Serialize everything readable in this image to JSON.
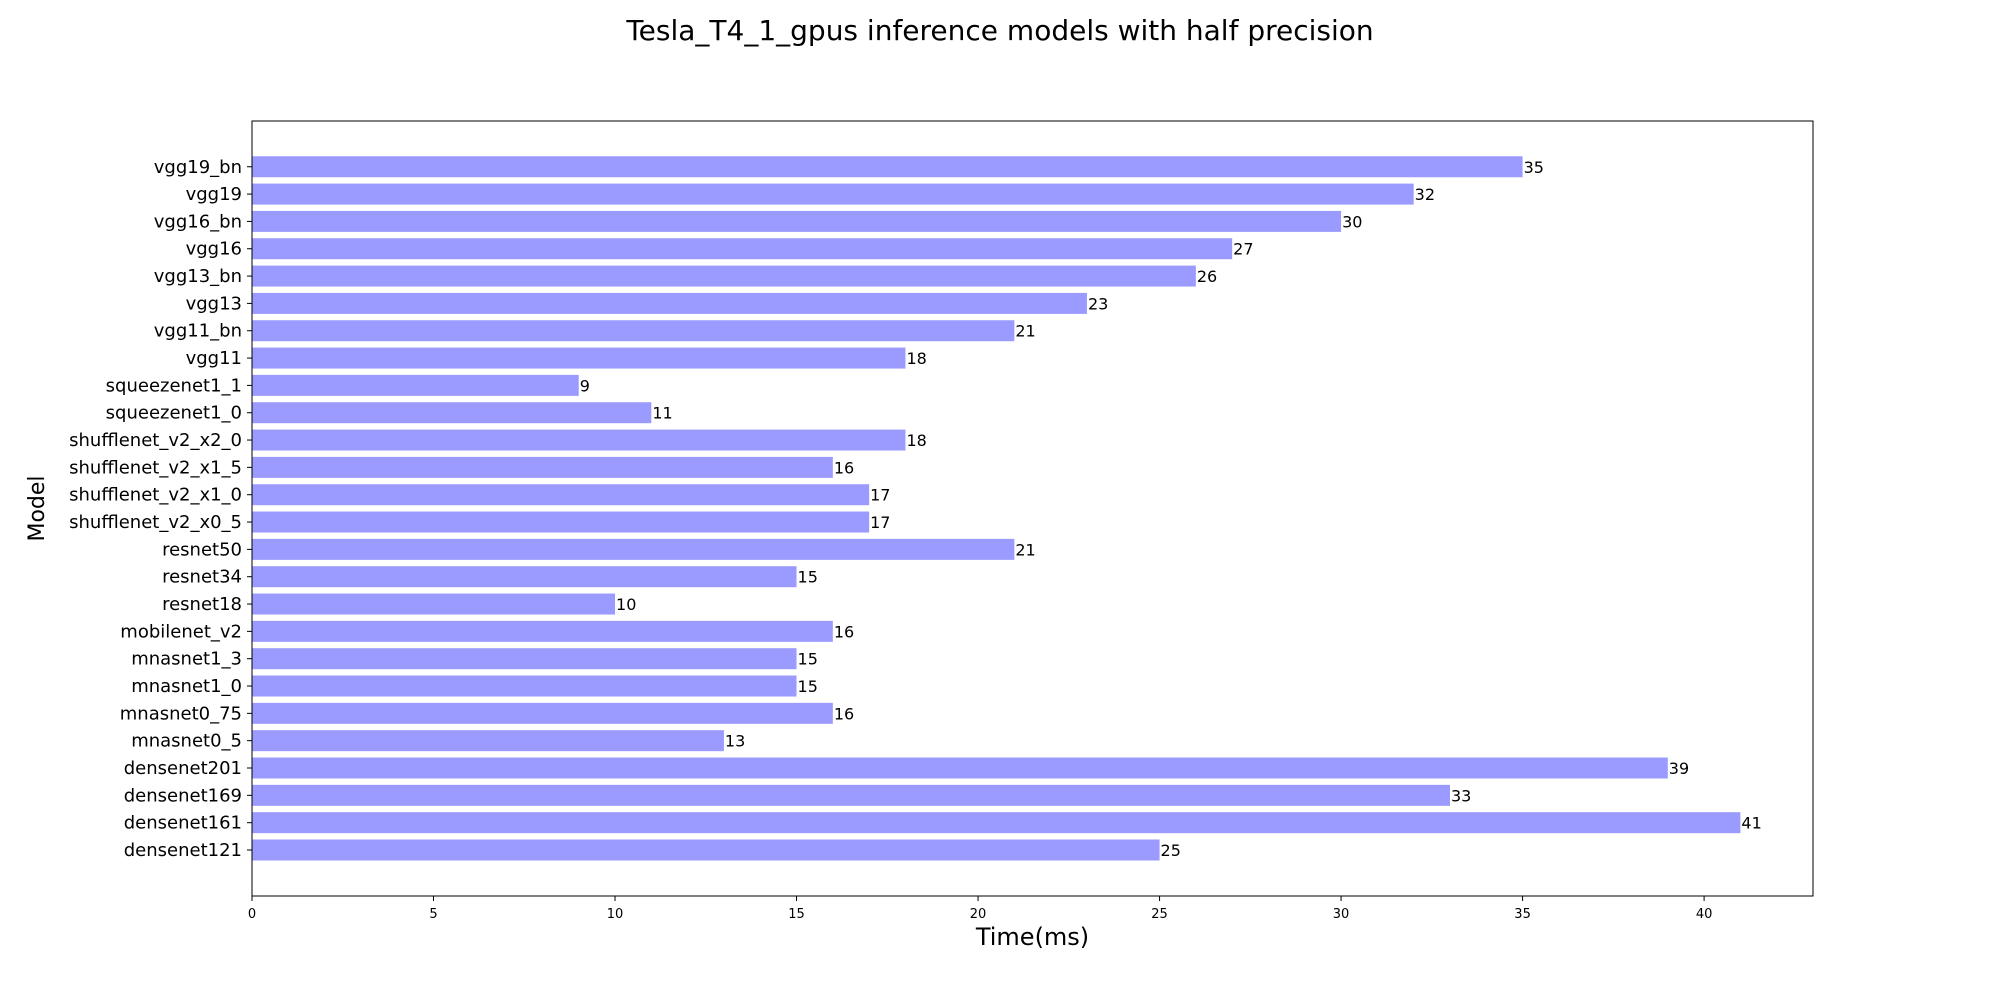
{
  "chart_data": {
    "type": "bar",
    "orientation": "horizontal",
    "title": "Tesla_T4_1_gpus inference models with half precision",
    "xlabel": "Time(ms)",
    "ylabel": "Model",
    "xlim": [
      0,
      43
    ],
    "xticks": [
      0,
      5,
      10,
      15,
      20,
      25,
      30,
      35,
      40
    ],
    "grid": false,
    "bar_color": "#9b9bff",
    "categories": [
      "densenet121",
      "densenet161",
      "densenet169",
      "densenet201",
      "mnasnet0_5",
      "mnasnet0_75",
      "mnasnet1_0",
      "mnasnet1_3",
      "mobilenet_v2",
      "resnet18",
      "resnet34",
      "resnet50",
      "shufflenet_v2_x0_5",
      "shufflenet_v2_x1_0",
      "shufflenet_v2_x1_5",
      "shufflenet_v2_x2_0",
      "squeezenet1_0",
      "squeezenet1_1",
      "vgg11",
      "vgg11_bn",
      "vgg13",
      "vgg13_bn",
      "vgg16",
      "vgg16_bn",
      "vgg19",
      "vgg19_bn"
    ],
    "values": [
      25,
      41,
      33,
      39,
      13,
      16,
      15,
      15,
      16,
      10,
      15,
      21,
      17,
      17,
      16,
      18,
      11,
      9,
      18,
      21,
      23,
      26,
      27,
      30,
      32,
      35
    ],
    "data_labels": [
      "25",
      "41",
      "33",
      "39",
      "13",
      "16",
      "15",
      "15",
      "16",
      "10",
      "15",
      "21",
      "17",
      "17",
      "16",
      "18",
      "11",
      "9",
      "18",
      "21",
      "23",
      "26",
      "27",
      "30",
      "32",
      "35"
    ]
  }
}
